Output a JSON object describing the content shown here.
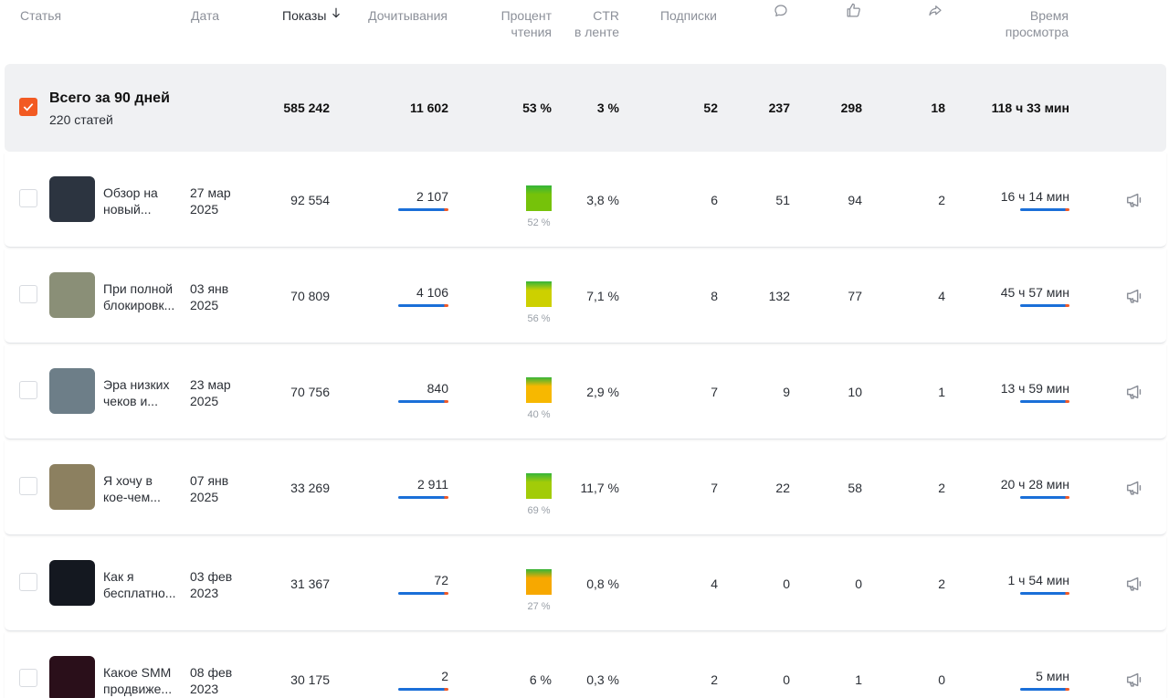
{
  "header": {
    "columns": [
      [
        "Статья"
      ],
      [
        "Дата"
      ],
      [
        "Показы"
      ],
      [
        "Дочитывания"
      ],
      [
        "Процент",
        "чтения"
      ],
      [
        "CTR",
        "в ленте"
      ],
      [
        "Подписки"
      ],
      [
        "Время",
        "просмотра"
      ]
    ]
  },
  "total": {
    "title": "Всего за 90 дней",
    "subtitle": "220 статей",
    "views": "585 242",
    "reads": "11 602",
    "read_pct": "53 %",
    "ctr": "3 %",
    "subs": "52",
    "comments": "237",
    "likes": "298",
    "shares": "18",
    "time": "118 ч 33 мин"
  },
  "rows": [
    {
      "title": [
        "Обзор на",
        "новый..."
      ],
      "date": [
        "27 мар",
        "2025"
      ],
      "views": "92 554",
      "reads": "2 107",
      "read_pct": "52 %",
      "swatch": "#76c20a",
      "ctr": "3,8 %",
      "subs": "6",
      "comments": "51",
      "likes": "94",
      "shares": "2",
      "time": "16 ч 14 мин"
    },
    {
      "title": [
        "При полной",
        "блокировк..."
      ],
      "date": [
        "03 янв",
        "2025"
      ],
      "views": "70 809",
      "reads": "4 106",
      "read_pct": "56 %",
      "swatch": "#cdd000",
      "ctr": "7,1 %",
      "subs": "8",
      "comments": "132",
      "likes": "77",
      "shares": "4",
      "time": "45 ч 57 мин"
    },
    {
      "title": [
        "Эра низких",
        "чеков и..."
      ],
      "date": [
        "23 мар",
        "2025"
      ],
      "views": "70 756",
      "reads": "840",
      "read_pct": "40 %",
      "swatch": "#f7b800",
      "ctr": "2,9 %",
      "subs": "7",
      "comments": "9",
      "likes": "10",
      "shares": "1",
      "time": "13 ч 59 мин"
    },
    {
      "title": [
        "Я хочу в",
        "кое-чем..."
      ],
      "date": [
        "07 янв",
        "2025"
      ],
      "views": "33 269",
      "reads": "2 911",
      "read_pct": "69 %",
      "swatch": "#a2cc08",
      "ctr": "11,7 %",
      "subs": "7",
      "comments": "22",
      "likes": "58",
      "shares": "2",
      "time": "20 ч 28 мин"
    },
    {
      "title": [
        "Как я",
        "бесплатно..."
      ],
      "date": [
        "03 фев",
        "2023"
      ],
      "views": "31 367",
      "reads": "72",
      "read_pct": "27 %",
      "swatch": "#f7a800",
      "ctr": "0,8 %",
      "subs": "4",
      "comments": "0",
      "likes": "0",
      "shares": "2",
      "time": "1 ч 54 мин"
    },
    {
      "title": [
        "Какое SMM",
        "продвиже..."
      ],
      "date": [
        "08 фев",
        "2023"
      ],
      "views": "30 175",
      "reads": "2",
      "read_pct": "6 %",
      "ctr": "0,3 %",
      "subs": "2",
      "comments": "0",
      "likes": "1",
      "shares": "0",
      "time": "5 мин"
    }
  ]
}
